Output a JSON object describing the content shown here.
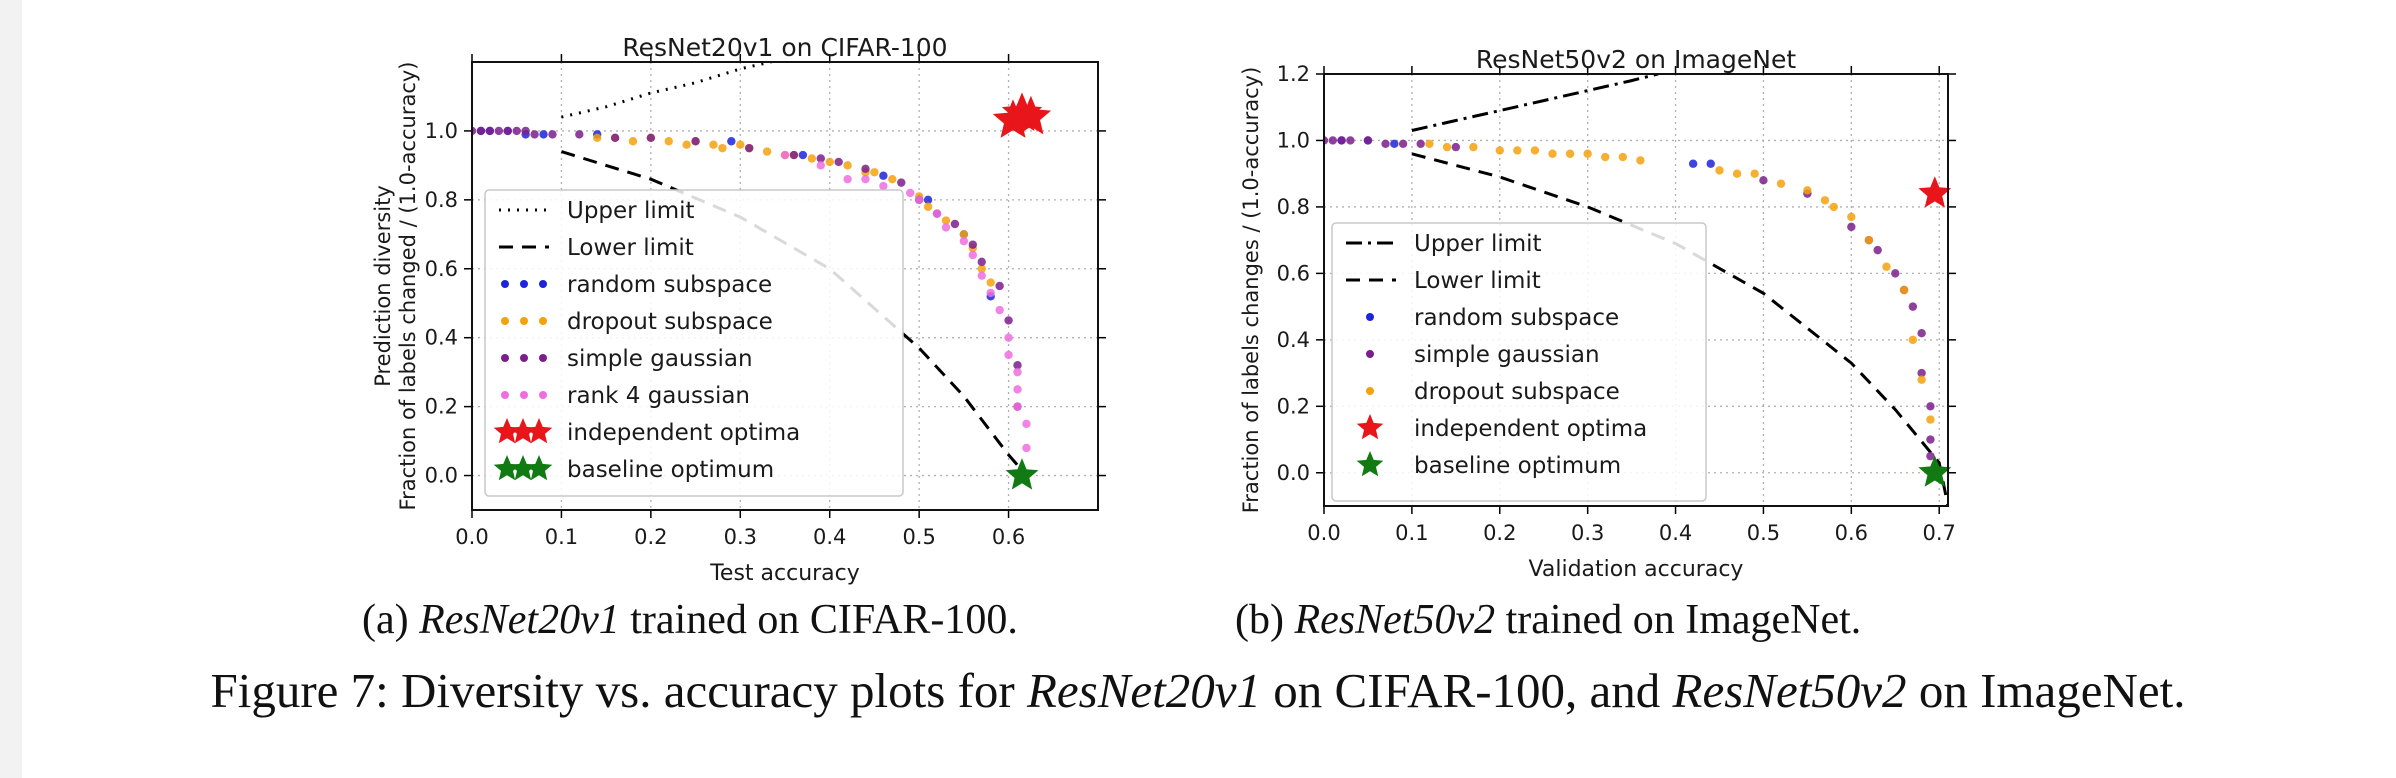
{
  "charts": [
    {
      "id": "left",
      "chart_data": {
        "type": "scatter",
        "title": "ResNet20v1 on CIFAR-100",
        "xlabel": "Test accuracy",
        "ylabel": [
          "Prediction diversity",
          "Fraction of labels changed / (1.0-accuracy)"
        ],
        "xlim": [
          0.0,
          0.7
        ],
        "ylim": [
          -0.1,
          1.2
        ],
        "xticks": [
          "0.0",
          "0.1",
          "0.2",
          "0.3",
          "0.4",
          "0.5",
          "0.6"
        ],
        "yticks": [
          "0.0",
          "0.2",
          "0.4",
          "0.6",
          "0.8",
          "1.0"
        ],
        "grid": true,
        "legend_position": "lower-left",
        "limit_curves": [
          {
            "name": "Upper limit",
            "style": "dotted",
            "x": [
              0.1,
              0.15,
              0.2,
              0.25,
              0.3,
              0.35
            ],
            "y": [
              1.04,
              1.07,
              1.11,
              1.14,
              1.18,
              1.21
            ]
          },
          {
            "name": "Lower limit",
            "style": "dashed",
            "x": [
              0.1,
              0.2,
              0.3,
              0.4,
              0.5,
              0.55,
              0.6,
              0.62
            ],
            "y": [
              0.94,
              0.86,
              0.75,
              0.6,
              0.37,
              0.23,
              0.06,
              0.0
            ]
          }
        ],
        "series": [
          {
            "name": "random subspace",
            "color": "#1c25d9",
            "marker": "dot",
            "x": [
              0.01,
              0.02,
              0.04,
              0.06,
              0.08,
              0.14,
              0.29,
              0.37,
              0.46,
              0.51,
              0.55,
              0.58
            ],
            "y": [
              1.0,
              1.0,
              1.0,
              0.99,
              0.99,
              0.99,
              0.97,
              0.93,
              0.87,
              0.8,
              0.7,
              0.52
            ]
          },
          {
            "name": "dropout subspace",
            "color": "#f5a10c",
            "marker": "dot",
            "x": [
              0.14,
              0.16,
              0.18,
              0.2,
              0.22,
              0.24,
              0.25,
              0.27,
              0.28,
              0.3,
              0.31,
              0.33,
              0.35,
              0.36,
              0.38,
              0.4,
              0.42,
              0.44,
              0.45,
              0.47,
              0.5,
              0.51,
              0.53,
              0.55,
              0.56,
              0.57,
              0.58
            ],
            "y": [
              0.98,
              0.98,
              0.97,
              0.98,
              0.97,
              0.96,
              0.97,
              0.96,
              0.95,
              0.96,
              0.95,
              0.94,
              0.93,
              0.93,
              0.92,
              0.91,
              0.9,
              0.88,
              0.88,
              0.86,
              0.81,
              0.78,
              0.74,
              0.7,
              0.66,
              0.6,
              0.56
            ]
          },
          {
            "name": "simple gaussian",
            "color": "#7b1e8c",
            "marker": "dot",
            "x": [
              0.0,
              0.01,
              0.02,
              0.03,
              0.04,
              0.05,
              0.06,
              0.07,
              0.09,
              0.12,
              0.16,
              0.2,
              0.25,
              0.31,
              0.36,
              0.39,
              0.41,
              0.44,
              0.48,
              0.5,
              0.52,
              0.54,
              0.56,
              0.57,
              0.59,
              0.6,
              0.61,
              0.61
            ],
            "y": [
              1.0,
              1.0,
              1.0,
              1.0,
              1.0,
              1.0,
              1.0,
              0.99,
              0.99,
              0.99,
              0.98,
              0.98,
              0.97,
              0.95,
              0.93,
              0.92,
              0.91,
              0.89,
              0.85,
              0.8,
              0.76,
              0.73,
              0.67,
              0.62,
              0.55,
              0.45,
              0.32,
              0.2
            ]
          },
          {
            "name": "rank 4 gaussian",
            "color": "#ef6ddf",
            "marker": "dot",
            "x": [
              0.35,
              0.39,
              0.42,
              0.44,
              0.46,
              0.49,
              0.5,
              0.52,
              0.53,
              0.55,
              0.56,
              0.57,
              0.58,
              0.59,
              0.6,
              0.6,
              0.61,
              0.61,
              0.61,
              0.62,
              0.62
            ],
            "y": [
              0.93,
              0.9,
              0.86,
              0.86,
              0.84,
              0.82,
              0.8,
              0.76,
              0.72,
              0.68,
              0.64,
              0.58,
              0.53,
              0.48,
              0.4,
              0.35,
              0.3,
              0.25,
              0.2,
              0.15,
              0.08
            ]
          },
          {
            "name": "independent optima",
            "color": "#e8151b",
            "marker": "star",
            "x": [
              0.605,
              0.615,
              0.625
            ],
            "y": [
              1.03,
              1.05,
              1.04
            ]
          },
          {
            "name": "baseline optimum",
            "color": "#127a13",
            "marker": "star",
            "x": [
              0.615
            ],
            "y": [
              0.0
            ]
          }
        ]
      }
    },
    {
      "id": "right",
      "chart_data": {
        "type": "scatter",
        "title": "ResNet50v2 on ImageNet",
        "xlabel": "Validation accuracy",
        "ylabel": [
          "Fraction of labels changes / (1.0-accuracy)"
        ],
        "xlim": [
          0.0,
          0.71
        ],
        "ylim": [
          -0.1,
          1.2
        ],
        "xticks": [
          "0.0",
          "0.1",
          "0.2",
          "0.3",
          "0.4",
          "0.5",
          "0.6",
          "0.7"
        ],
        "yticks": [
          "0.0",
          "0.2",
          "0.4",
          "0.6",
          "0.8",
          "1.0",
          "1.2"
        ],
        "grid": true,
        "legend_position": "lower-left",
        "limit_curves": [
          {
            "name": "Upper limit",
            "style": "dashdot",
            "x": [
              0.1,
              0.15,
              0.2,
              0.25,
              0.3,
              0.35,
              0.38
            ],
            "y": [
              1.03,
              1.06,
              1.09,
              1.12,
              1.15,
              1.18,
              1.2
            ]
          },
          {
            "name": "Lower limit",
            "style": "dashed",
            "x": [
              0.1,
              0.2,
              0.3,
              0.4,
              0.5,
              0.6,
              0.65,
              0.7,
              0.71
            ],
            "y": [
              0.96,
              0.89,
              0.8,
              0.69,
              0.54,
              0.33,
              0.19,
              0.03,
              -0.1
            ]
          }
        ],
        "series": [
          {
            "name": "random subspace",
            "color": "#1c25d9",
            "marker": "dot",
            "x": [
              0.02,
              0.05,
              0.08,
              0.42,
              0.44
            ],
            "y": [
              1.0,
              1.0,
              0.99,
              0.93,
              0.93
            ]
          },
          {
            "name": "simple gaussian",
            "color": "#7b1e8c",
            "marker": "dot",
            "x": [
              0.0,
              0.01,
              0.02,
              0.03,
              0.05,
              0.07,
              0.09,
              0.11,
              0.15,
              0.5,
              0.55,
              0.6,
              0.62,
              0.63,
              0.65,
              0.66,
              0.67,
              0.68,
              0.68,
              0.69,
              0.69,
              0.69
            ],
            "y": [
              1.0,
              1.0,
              1.0,
              1.0,
              1.0,
              0.99,
              0.99,
              0.99,
              0.98,
              0.88,
              0.84,
              0.74,
              0.7,
              0.67,
              0.6,
              0.55,
              0.5,
              0.42,
              0.3,
              0.2,
              0.1,
              0.05
            ]
          },
          {
            "name": "dropout subspace",
            "color": "#f5a10c",
            "marker": "dot",
            "x": [
              0.12,
              0.14,
              0.17,
              0.2,
              0.22,
              0.24,
              0.26,
              0.28,
              0.3,
              0.32,
              0.34,
              0.36,
              0.45,
              0.47,
              0.49,
              0.52,
              0.55,
              0.57,
              0.58,
              0.6,
              0.62,
              0.64,
              0.66,
              0.67,
              0.68,
              0.69
            ],
            "y": [
              0.99,
              0.98,
              0.98,
              0.97,
              0.97,
              0.97,
              0.96,
              0.96,
              0.96,
              0.95,
              0.95,
              0.94,
              0.91,
              0.9,
              0.9,
              0.87,
              0.85,
              0.82,
              0.8,
              0.77,
              0.7,
              0.62,
              0.55,
              0.4,
              0.28,
              0.16
            ]
          },
          {
            "name": "independent optima",
            "color": "#e8151b",
            "marker": "star",
            "x": [
              0.695
            ],
            "y": [
              0.84
            ]
          },
          {
            "name": "baseline optimum",
            "color": "#127a13",
            "marker": "star",
            "x": [
              0.695
            ],
            "y": [
              0.0
            ]
          }
        ]
      }
    }
  ],
  "captions": {
    "a_prefix": "(a) ",
    "a_italic": "ResNet20v1",
    "a_suffix": " trained on CIFAR-100.",
    "b_prefix": "(b) ",
    "b_italic": "ResNet50v2",
    "b_suffix": " trained on ImageNet.",
    "fig_p1": "Figure 7: Diversity vs. accuracy plots for ",
    "fig_i1": "ResNet20v1",
    "fig_p2": " on CIFAR-100, and ",
    "fig_i2": "ResNet50v2",
    "fig_p3": " on ImageNet."
  }
}
